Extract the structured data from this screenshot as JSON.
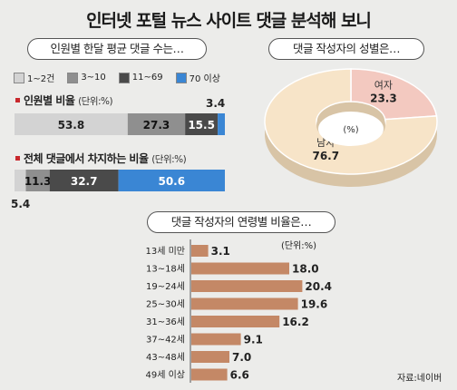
{
  "header": {
    "title": "인터넷 포털 뉴스 사이트 댓글 분석해 보니"
  },
  "panels": {
    "count_title": "인원별 한달 평균 댓글 수는…",
    "gender_title": "댓글 작성자의 성별은…",
    "age_title": "댓글 작성자의 연령별 비율은…"
  },
  "legend": [
    "1~2건",
    "3~10",
    "11~69",
    "70 이상"
  ],
  "colors": {
    "c1": "#d3d3d3",
    "c2": "#8f8f8f",
    "c3": "#4a4a4a",
    "c4": "#3a86d4",
    "female": "#f3c9c0",
    "male": "#f7e4c8",
    "age_bar": "#c48866",
    "accent": "#c8282d"
  },
  "sections": {
    "people": {
      "label": "인원별 비율",
      "unit": "(단위:%)"
    },
    "total": {
      "label": "전체 댓글에서 차지하는 비율",
      "unit": "(단위:%)"
    }
  },
  "source": "자료:네이버",
  "chart_data": [
    {
      "type": "bar",
      "title": "인원별 비율",
      "unit": "(단위:%)",
      "categories": [
        "1~2건",
        "3~10",
        "11~69",
        "70 이상"
      ],
      "values": [
        53.8,
        27.3,
        15.5,
        3.4
      ]
    },
    {
      "type": "bar",
      "title": "전체 댓글에서 차지하는 비율",
      "unit": "(단위:%)",
      "categories": [
        "1~2건",
        "3~10",
        "11~69",
        "70 이상"
      ],
      "values": [
        5.4,
        11.3,
        32.7,
        50.6
      ]
    },
    {
      "type": "pie",
      "title": "댓글 작성자의 성별은…",
      "categories": [
        "여자",
        "남자"
      ],
      "values": [
        23.3,
        76.7
      ],
      "center_label": "(%)"
    },
    {
      "type": "bar",
      "title": "댓글 작성자의 연령별 비율은…",
      "unit": "(단위:%)",
      "categories": [
        "13세 미만",
        "13~18세",
        "19~24세",
        "25~30세",
        "31~36세",
        "37~42세",
        "43~48세",
        "49세 이상"
      ],
      "values": [
        3.1,
        18.0,
        20.4,
        19.6,
        16.2,
        9.1,
        7.0,
        6.6
      ]
    }
  ]
}
